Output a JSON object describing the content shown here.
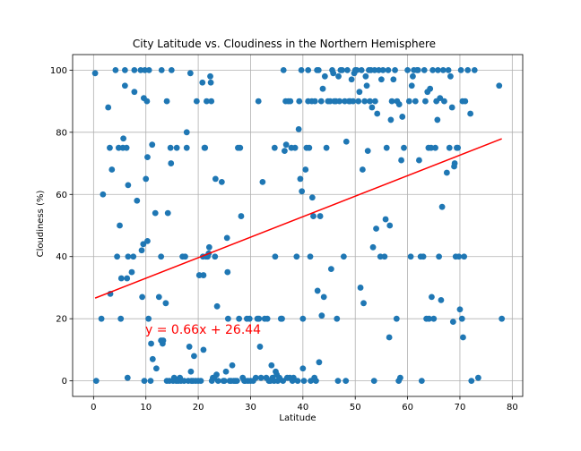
{
  "chart_data": {
    "type": "scatter",
    "title": "City Latitude vs. Cloudiness in the Northern Hemisphere",
    "xlabel": "Latitude",
    "ylabel": "Cloudiness (%)",
    "xlim": [
      -4,
      82
    ],
    "ylim": [
      -5,
      105
    ],
    "x_ticks": [
      0,
      10,
      20,
      30,
      40,
      50,
      60,
      70,
      80
    ],
    "y_ticks": [
      0,
      20,
      40,
      60,
      80,
      100
    ],
    "grid": true,
    "point_color": "#1f77b4",
    "regression": {
      "slope": 0.66,
      "intercept": 26.44,
      "x_range": [
        0.3,
        78
      ],
      "color": "#ff0000",
      "label": "y = 0.66x + 26.44"
    },
    "points": [
      [
        0.3,
        99
      ],
      [
        0.5,
        0
      ],
      [
        1.5,
        20
      ],
      [
        1.8,
        60
      ],
      [
        2.8,
        88
      ],
      [
        3.1,
        75
      ],
      [
        3.2,
        28
      ],
      [
        3.5,
        68
      ],
      [
        4.2,
        100
      ],
      [
        4.5,
        40
      ],
      [
        4.8,
        75
      ],
      [
        5.0,
        50
      ],
      [
        5.2,
        20
      ],
      [
        5.3,
        33
      ],
      [
        5.6,
        75
      ],
      [
        5.7,
        78
      ],
      [
        6.0,
        95
      ],
      [
        6.0,
        100
      ],
      [
        6.3,
        75
      ],
      [
        6.4,
        33
      ],
      [
        6.5,
        1
      ],
      [
        6.6,
        63
      ],
      [
        6.6,
        40
      ],
      [
        7.3,
        35
      ],
      [
        7.6,
        40
      ],
      [
        7.8,
        93
      ],
      [
        7.8,
        100
      ],
      [
        8.3,
        58
      ],
      [
        9.0,
        100
      ],
      [
        9.2,
        42
      ],
      [
        9.3,
        27
      ],
      [
        9.5,
        44
      ],
      [
        9.6,
        91
      ],
      [
        9.7,
        0
      ],
      [
        9.8,
        100
      ],
      [
        10.0,
        65
      ],
      [
        10.2,
        90
      ],
      [
        10.3,
        45
      ],
      [
        10.3,
        72
      ],
      [
        10.5,
        20
      ],
      [
        10.6,
        100
      ],
      [
        10.9,
        0
      ],
      [
        11.0,
        12
      ],
      [
        11.2,
        76
      ],
      [
        11.3,
        7
      ],
      [
        11.8,
        54
      ],
      [
        12.0,
        4
      ],
      [
        12.5,
        27
      ],
      [
        12.9,
        40
      ],
      [
        12.9,
        13
      ],
      [
        13.0,
        100
      ],
      [
        13.2,
        12
      ],
      [
        13.3,
        13
      ],
      [
        13.8,
        25
      ],
      [
        14.0,
        90
      ],
      [
        14.0,
        0
      ],
      [
        14.2,
        54
      ],
      [
        14.5,
        0
      ],
      [
        14.7,
        75
      ],
      [
        14.8,
        70
      ],
      [
        14.9,
        100
      ],
      [
        15.2,
        0
      ],
      [
        15.4,
        1
      ],
      [
        15.8,
        0
      ],
      [
        15.9,
        75
      ],
      [
        16.2,
        0
      ],
      [
        16.5,
        1
      ],
      [
        16.7,
        0
      ],
      [
        17.0,
        40
      ],
      [
        17.3,
        0
      ],
      [
        17.5,
        40
      ],
      [
        17.8,
        75
      ],
      [
        17.8,
        80
      ],
      [
        18.1,
        0
      ],
      [
        18.3,
        11
      ],
      [
        18.5,
        99
      ],
      [
        18.6,
        3
      ],
      [
        18.7,
        0
      ],
      [
        19.0,
        0
      ],
      [
        19.2,
        8
      ],
      [
        19.5,
        0
      ],
      [
        19.7,
        90
      ],
      [
        20.0,
        0
      ],
      [
        20.2,
        34
      ],
      [
        20.5,
        0
      ],
      [
        20.8,
        96
      ],
      [
        20.9,
        40
      ],
      [
        21.0,
        34
      ],
      [
        21.0,
        10
      ],
      [
        21.2,
        75
      ],
      [
        21.3,
        75
      ],
      [
        21.5,
        40
      ],
      [
        21.6,
        90
      ],
      [
        21.8,
        40
      ],
      [
        22.0,
        41
      ],
      [
        22.1,
        43
      ],
      [
        22.3,
        98
      ],
      [
        22.4,
        96
      ],
      [
        22.5,
        90
      ],
      [
        22.6,
        0
      ],
      [
        22.8,
        1
      ],
      [
        23.0,
        1
      ],
      [
        23.2,
        40
      ],
      [
        23.3,
        65
      ],
      [
        23.5,
        2
      ],
      [
        23.6,
        24
      ],
      [
        23.8,
        0
      ],
      [
        24.5,
        64
      ],
      [
        24.8,
        0
      ],
      [
        25.0,
        0
      ],
      [
        25.3,
        3
      ],
      [
        25.5,
        46
      ],
      [
        25.6,
        35
      ],
      [
        25.7,
        20
      ],
      [
        26.0,
        0
      ],
      [
        26.3,
        0
      ],
      [
        26.5,
        5
      ],
      [
        26.8,
        0
      ],
      [
        27.1,
        0
      ],
      [
        27.4,
        0
      ],
      [
        27.6,
        75
      ],
      [
        27.8,
        20
      ],
      [
        28.0,
        75
      ],
      [
        28.2,
        53
      ],
      [
        28.5,
        1
      ],
      [
        28.8,
        0
      ],
      [
        29.0,
        0
      ],
      [
        29.3,
        20
      ],
      [
        29.5,
        0
      ],
      [
        29.8,
        20
      ],
      [
        30.0,
        0
      ],
      [
        30.5,
        0
      ],
      [
        31.0,
        1
      ],
      [
        31.3,
        20
      ],
      [
        31.5,
        90
      ],
      [
        31.6,
        20
      ],
      [
        31.8,
        11
      ],
      [
        32.0,
        1
      ],
      [
        32.3,
        64
      ],
      [
        32.7,
        20
      ],
      [
        33.0,
        1
      ],
      [
        33.2,
        20
      ],
      [
        33.5,
        0
      ],
      [
        33.8,
        0
      ],
      [
        34.0,
        5
      ],
      [
        34.2,
        1
      ],
      [
        34.5,
        0
      ],
      [
        34.6,
        75
      ],
      [
        34.7,
        40
      ],
      [
        34.8,
        3
      ],
      [
        35.0,
        2
      ],
      [
        35.2,
        0
      ],
      [
        35.5,
        1
      ],
      [
        35.8,
        20
      ],
      [
        36.0,
        20
      ],
      [
        36.2,
        0
      ],
      [
        36.3,
        100
      ],
      [
        36.5,
        74
      ],
      [
        36.7,
        90
      ],
      [
        36.8,
        76
      ],
      [
        37.0,
        1
      ],
      [
        37.2,
        90
      ],
      [
        37.5,
        1
      ],
      [
        37.6,
        90
      ],
      [
        37.8,
        75
      ],
      [
        38.0,
        0
      ],
      [
        38.2,
        1
      ],
      [
        38.5,
        75
      ],
      [
        38.8,
        40
      ],
      [
        39.0,
        0
      ],
      [
        39.2,
        81
      ],
      [
        39.3,
        90
      ],
      [
        39.5,
        65
      ],
      [
        39.7,
        100
      ],
      [
        39.8,
        61
      ],
      [
        40.0,
        20
      ],
      [
        40.0,
        4
      ],
      [
        40.2,
        0
      ],
      [
        40.5,
        68
      ],
      [
        40.7,
        75
      ],
      [
        41.0,
        90
      ],
      [
        41.0,
        100
      ],
      [
        41.2,
        75
      ],
      [
        41.4,
        40
      ],
      [
        41.5,
        0
      ],
      [
        41.7,
        90
      ],
      [
        41.8,
        59
      ],
      [
        42.0,
        53
      ],
      [
        42.2,
        1
      ],
      [
        42.3,
        90
      ],
      [
        42.5,
        0
      ],
      [
        42.7,
        100
      ],
      [
        42.8,
        29
      ],
      [
        43.0,
        100
      ],
      [
        43.1,
        6
      ],
      [
        43.3,
        53
      ],
      [
        43.5,
        90
      ],
      [
        43.6,
        21
      ],
      [
        43.8,
        94
      ],
      [
        44.0,
        27
      ],
      [
        44.2,
        98
      ],
      [
        44.5,
        75
      ],
      [
        44.8,
        90
      ],
      [
        45.2,
        90
      ],
      [
        45.4,
        36
      ],
      [
        45.6,
        100
      ],
      [
        45.8,
        99
      ],
      [
        46.0,
        90
      ],
      [
        46.3,
        90
      ],
      [
        46.5,
        20
      ],
      [
        46.7,
        0
      ],
      [
        46.8,
        98
      ],
      [
        47.0,
        90
      ],
      [
        47.2,
        100
      ],
      [
        47.5,
        100
      ],
      [
        47.8,
        40
      ],
      [
        48.0,
        90
      ],
      [
        48.2,
        0
      ],
      [
        48.3,
        77
      ],
      [
        48.5,
        100
      ],
      [
        48.8,
        90
      ],
      [
        49.0,
        90
      ],
      [
        49.3,
        97
      ],
      [
        49.6,
        90
      ],
      [
        49.8,
        99
      ],
      [
        50.0,
        100
      ],
      [
        50.3,
        100
      ],
      [
        50.6,
        90
      ],
      [
        50.8,
        93
      ],
      [
        51.0,
        30
      ],
      [
        51.2,
        100
      ],
      [
        51.4,
        68
      ],
      [
        51.6,
        25
      ],
      [
        51.8,
        90
      ],
      [
        52.0,
        98
      ],
      [
        52.2,
        95
      ],
      [
        52.4,
        74
      ],
      [
        52.6,
        100
      ],
      [
        52.8,
        90
      ],
      [
        53.0,
        100
      ],
      [
        53.2,
        88
      ],
      [
        53.4,
        43
      ],
      [
        53.6,
        0
      ],
      [
        53.7,
        100
      ],
      [
        53.8,
        90
      ],
      [
        54.0,
        49
      ],
      [
        54.2,
        86
      ],
      [
        54.5,
        100
      ],
      [
        54.8,
        40
      ],
      [
        55.0,
        97
      ],
      [
        55.3,
        100
      ],
      [
        55.6,
        40
      ],
      [
        55.8,
        52
      ],
      [
        56.0,
        75
      ],
      [
        56.3,
        100
      ],
      [
        56.5,
        14
      ],
      [
        56.6,
        50
      ],
      [
        56.8,
        84
      ],
      [
        57.0,
        90
      ],
      [
        57.3,
        97
      ],
      [
        57.6,
        100
      ],
      [
        57.9,
        20
      ],
      [
        58.0,
        90
      ],
      [
        58.3,
        0
      ],
      [
        58.4,
        89
      ],
      [
        58.6,
        1
      ],
      [
        58.8,
        71
      ],
      [
        59.0,
        85
      ],
      [
        59.3,
        75
      ],
      [
        60.0,
        100
      ],
      [
        60.3,
        90
      ],
      [
        60.6,
        40
      ],
      [
        60.8,
        95
      ],
      [
        61.0,
        98
      ],
      [
        61.2,
        100
      ],
      [
        61.5,
        90
      ],
      [
        61.8,
        100
      ],
      [
        62.0,
        100
      ],
      [
        62.2,
        71
      ],
      [
        62.5,
        40
      ],
      [
        62.7,
        0
      ],
      [
        63.0,
        40
      ],
      [
        63.2,
        100
      ],
      [
        63.4,
        90
      ],
      [
        63.6,
        20
      ],
      [
        63.8,
        93
      ],
      [
        64.0,
        75
      ],
      [
        64.1,
        20
      ],
      [
        64.3,
        94
      ],
      [
        64.5,
        75
      ],
      [
        64.6,
        27
      ],
      [
        64.8,
        100
      ],
      [
        65.0,
        20
      ],
      [
        65.3,
        75
      ],
      [
        65.5,
        90
      ],
      [
        65.7,
        84
      ],
      [
        65.8,
        100
      ],
      [
        66.0,
        40
      ],
      [
        66.2,
        91
      ],
      [
        66.4,
        26
      ],
      [
        66.6,
        56
      ],
      [
        66.8,
        100
      ],
      [
        67.0,
        90
      ],
      [
        67.5,
        67
      ],
      [
        67.8,
        100
      ],
      [
        68.0,
        75
      ],
      [
        68.2,
        98
      ],
      [
        68.5,
        88
      ],
      [
        68.7,
        19
      ],
      [
        68.9,
        69
      ],
      [
        69.0,
        70
      ],
      [
        69.2,
        40
      ],
      [
        69.4,
        75
      ],
      [
        69.6,
        75
      ],
      [
        69.8,
        40
      ],
      [
        70.0,
        23
      ],
      [
        70.2,
        100
      ],
      [
        70.4,
        20
      ],
      [
        70.5,
        90
      ],
      [
        70.6,
        14
      ],
      [
        70.8,
        40
      ],
      [
        71.0,
        90
      ],
      [
        71.5,
        100
      ],
      [
        72.0,
        86
      ],
      [
        72.2,
        0
      ],
      [
        72.8,
        100
      ],
      [
        73.5,
        1
      ],
      [
        77.5,
        95
      ],
      [
        78.0,
        20
      ]
    ]
  }
}
